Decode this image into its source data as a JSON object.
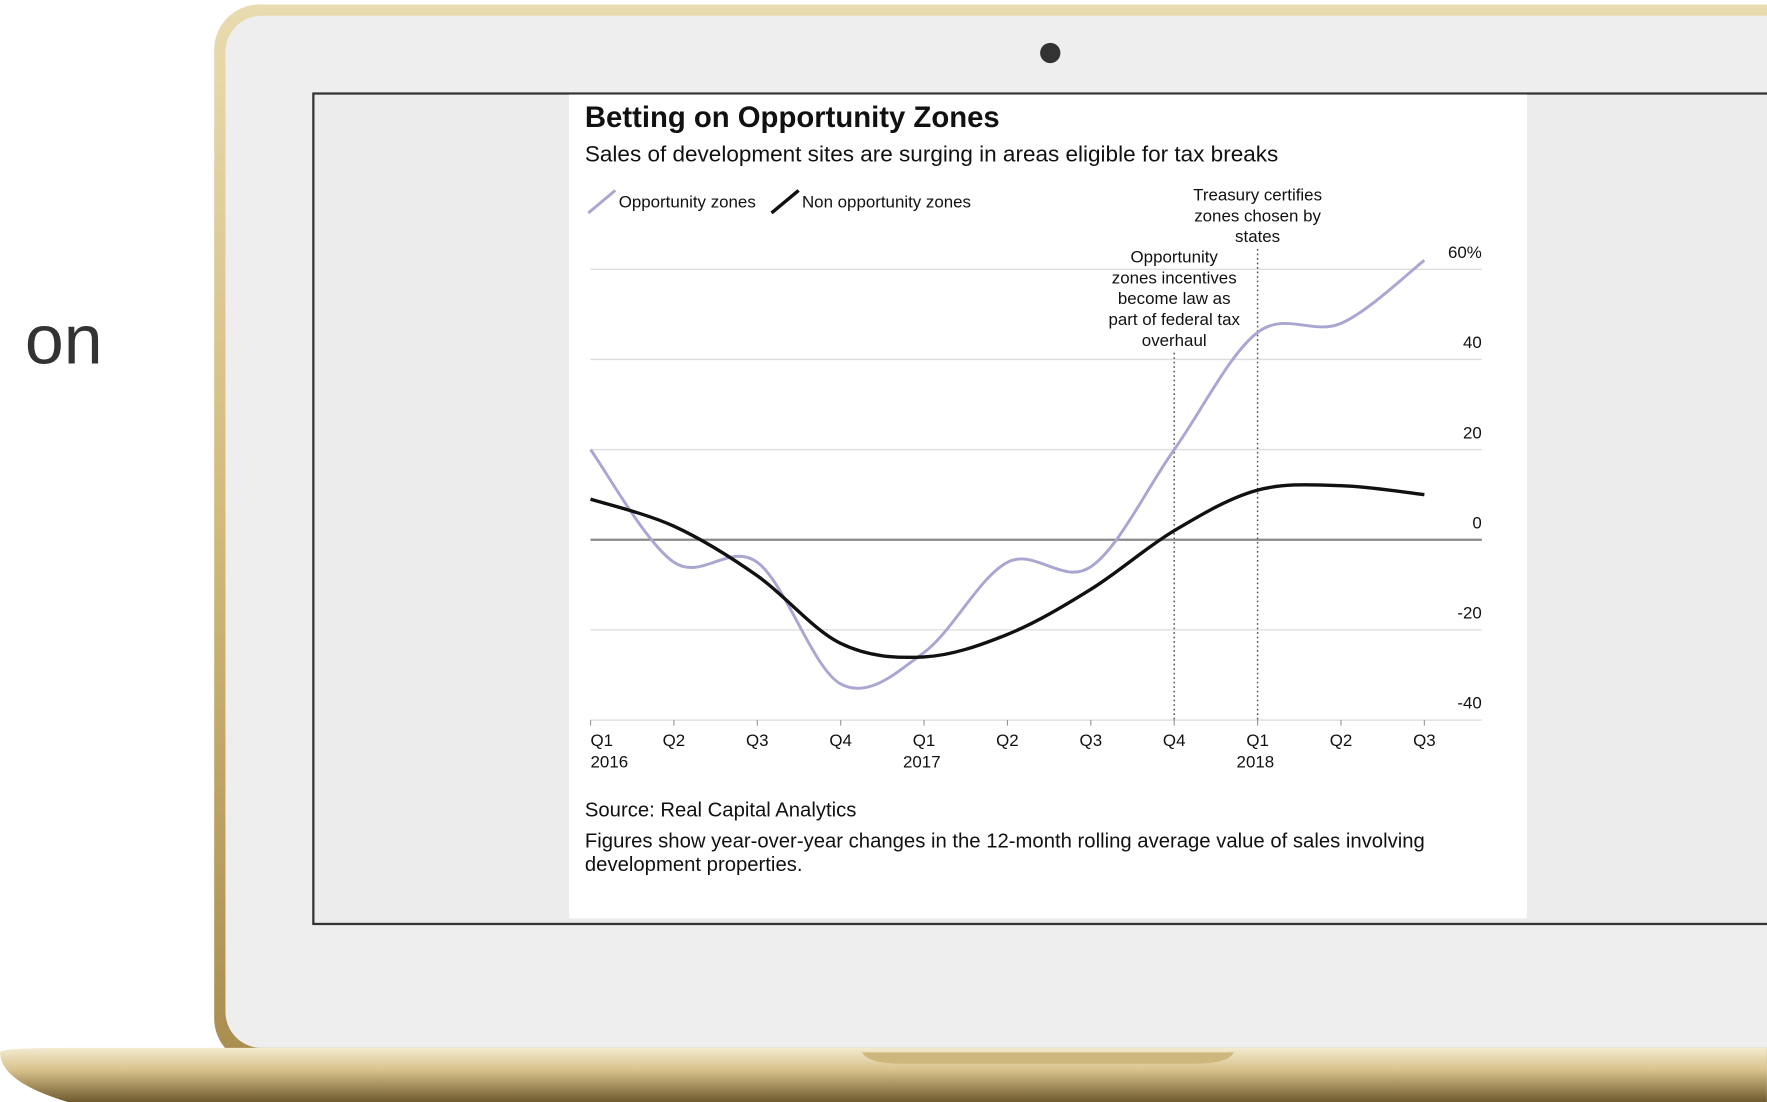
{
  "page": {
    "side_text": "on"
  },
  "chart_data": {
    "type": "line",
    "title": "Betting on Opportunity Zones",
    "subtitle": "Sales of development sites are surging in areas eligible for tax breaks",
    "categories": [
      "Q1",
      "Q2",
      "Q3",
      "Q4",
      "Q1",
      "Q2",
      "Q3",
      "Q4",
      "Q1",
      "Q2",
      "Q3"
    ],
    "years": [
      "2016",
      null,
      null,
      null,
      "2017",
      null,
      null,
      null,
      "2018",
      null,
      null
    ],
    "series": [
      {
        "name": "Opportunity zones",
        "color": "#aaa6d2",
        "values": [
          20,
          -5,
          -5,
          -32,
          -25,
          -5,
          -6,
          20,
          46,
          48,
          62
        ]
      },
      {
        "name": "Non opportunity zones",
        "color": "#111111",
        "values": [
          9,
          3,
          -8,
          -23,
          -26,
          -21,
          -11,
          2,
          11,
          12,
          10
        ]
      }
    ],
    "ylim": [
      -40,
      63
    ],
    "yticks": [
      {
        "value": 60,
        "label": "60%"
      },
      40,
      20,
      0,
      -20,
      -40
    ],
    "grid": true,
    "annotations": [
      {
        "index": 7,
        "lines": [
          "Opportunity",
          "zones incentives",
          "become law as",
          "part of federal tax",
          "overhaul"
        ]
      },
      {
        "index": 8,
        "lines": [
          "Treasury certifies",
          "zones chosen by",
          "states"
        ]
      }
    ],
    "source": "Source: Real Capital Analytics",
    "note": "Figures show year-over-year changes in the 12-month rolling average value of sales involving development properties."
  }
}
